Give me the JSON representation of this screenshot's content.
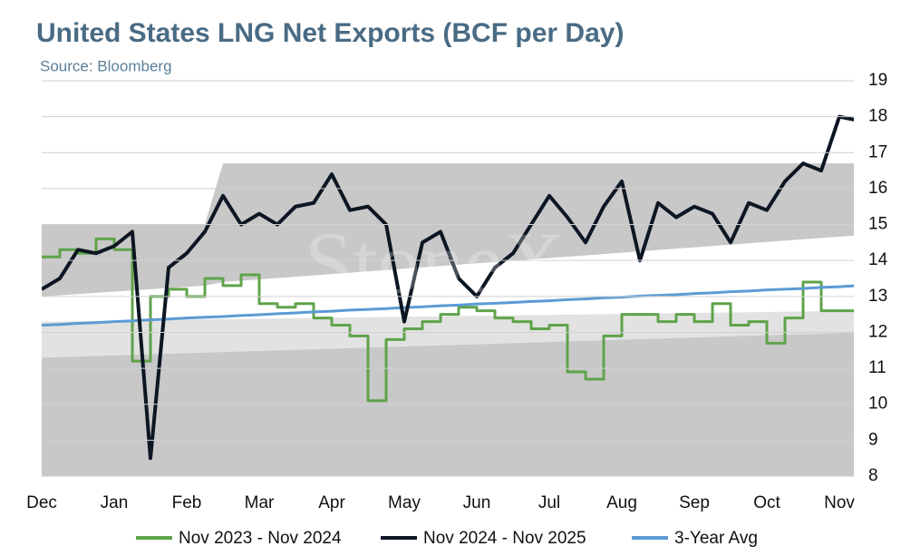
{
  "chart_data": {
    "type": "line",
    "title": "United States LNG Net Exports (BCF per Day)",
    "subtitle": "Source: Bloomberg",
    "watermark": "StoneX",
    "categories": [
      "Dec",
      null,
      null,
      null,
      "Jan",
      null,
      null,
      null,
      "Feb",
      null,
      null,
      null,
      "Mar",
      null,
      null,
      null,
      "Apr",
      null,
      null,
      null,
      "May",
      null,
      null,
      null,
      "Jun",
      null,
      null,
      null,
      "Jul",
      null,
      null,
      null,
      "Aug",
      null,
      null,
      null,
      "Sep",
      null,
      null,
      null,
      "Oct",
      null,
      null,
      null,
      "Nov",
      null
    ],
    "series": [
      {
        "name": "Nov 2023 - Nov 2024",
        "color": "#5fa34a",
        "step": true,
        "values": [
          14.1,
          14.3,
          14.2,
          14.6,
          14.3,
          11.2,
          13.0,
          13.2,
          13.0,
          13.5,
          13.3,
          13.6,
          12.8,
          12.7,
          12.8,
          12.4,
          12.2,
          11.9,
          10.1,
          11.8,
          12.1,
          12.3,
          12.5,
          12.7,
          12.6,
          12.4,
          12.3,
          12.1,
          12.2,
          10.9,
          10.7,
          11.9,
          12.5,
          12.5,
          12.3,
          12.5,
          12.3,
          12.8,
          12.2,
          12.3,
          11.7,
          12.4,
          13.4,
          12.6,
          12.6,
          13.6
        ]
      },
      {
        "name": "Nov 2024 - Nov 2025",
        "color": "#0d1623",
        "values": [
          13.2,
          13.5,
          14.3,
          14.2,
          14.4,
          14.8,
          8.5,
          13.8,
          14.2,
          14.8,
          15.8,
          15.0,
          15.3,
          15.0,
          15.5,
          15.6,
          16.4,
          15.4,
          15.5,
          15.0,
          12.3,
          14.5,
          14.8,
          13.5,
          13.0,
          13.8,
          14.2,
          15.0,
          15.8,
          15.2,
          14.5,
          15.5,
          16.2,
          14.0,
          15.6,
          15.2,
          15.5,
          15.3,
          14.5,
          15.6,
          15.4,
          16.2,
          16.7,
          16.5,
          18.0,
          17.9
        ]
      },
      {
        "name": "3-Year Avg",
        "color": "#5b9bd5",
        "values": [
          12.2,
          12.22,
          12.25,
          12.27,
          12.3,
          12.32,
          12.35,
          12.37,
          12.4,
          12.42,
          12.44,
          12.47,
          12.49,
          12.52,
          12.54,
          12.57,
          12.59,
          12.62,
          12.64,
          12.66,
          12.69,
          12.71,
          12.74,
          12.76,
          12.79,
          12.81,
          12.83,
          12.86,
          12.88,
          12.91,
          12.93,
          12.96,
          12.98,
          13.01,
          13.03,
          13.05,
          13.08,
          13.1,
          13.13,
          13.15,
          13.18,
          13.2,
          13.22,
          13.25,
          13.27,
          13.3
        ]
      }
    ],
    "bands": [
      {
        "color": "#c8c8c8",
        "x": [
          0,
          45
        ],
        "lower": [
          8,
          8
        ],
        "upper": [
          11.3,
          12.0
        ]
      },
      {
        "color": "#e2e2e2",
        "x": [
          0,
          45
        ],
        "lower": [
          11.3,
          12.0
        ],
        "upper": [
          12.3,
          12.6
        ]
      },
      {
        "color": "#c8c8c8",
        "x": [
          0,
          9,
          10,
          45
        ],
        "lower": [
          13.0,
          13.3,
          13.4,
          14.7
        ],
        "upper": [
          15.0,
          15.0,
          16.7,
          16.7
        ]
      }
    ],
    "ylim": [
      8,
      19
    ],
    "yticks": [
      8,
      9,
      10,
      11,
      12,
      13,
      14,
      15,
      16,
      17,
      18,
      19
    ],
    "grid": true
  }
}
